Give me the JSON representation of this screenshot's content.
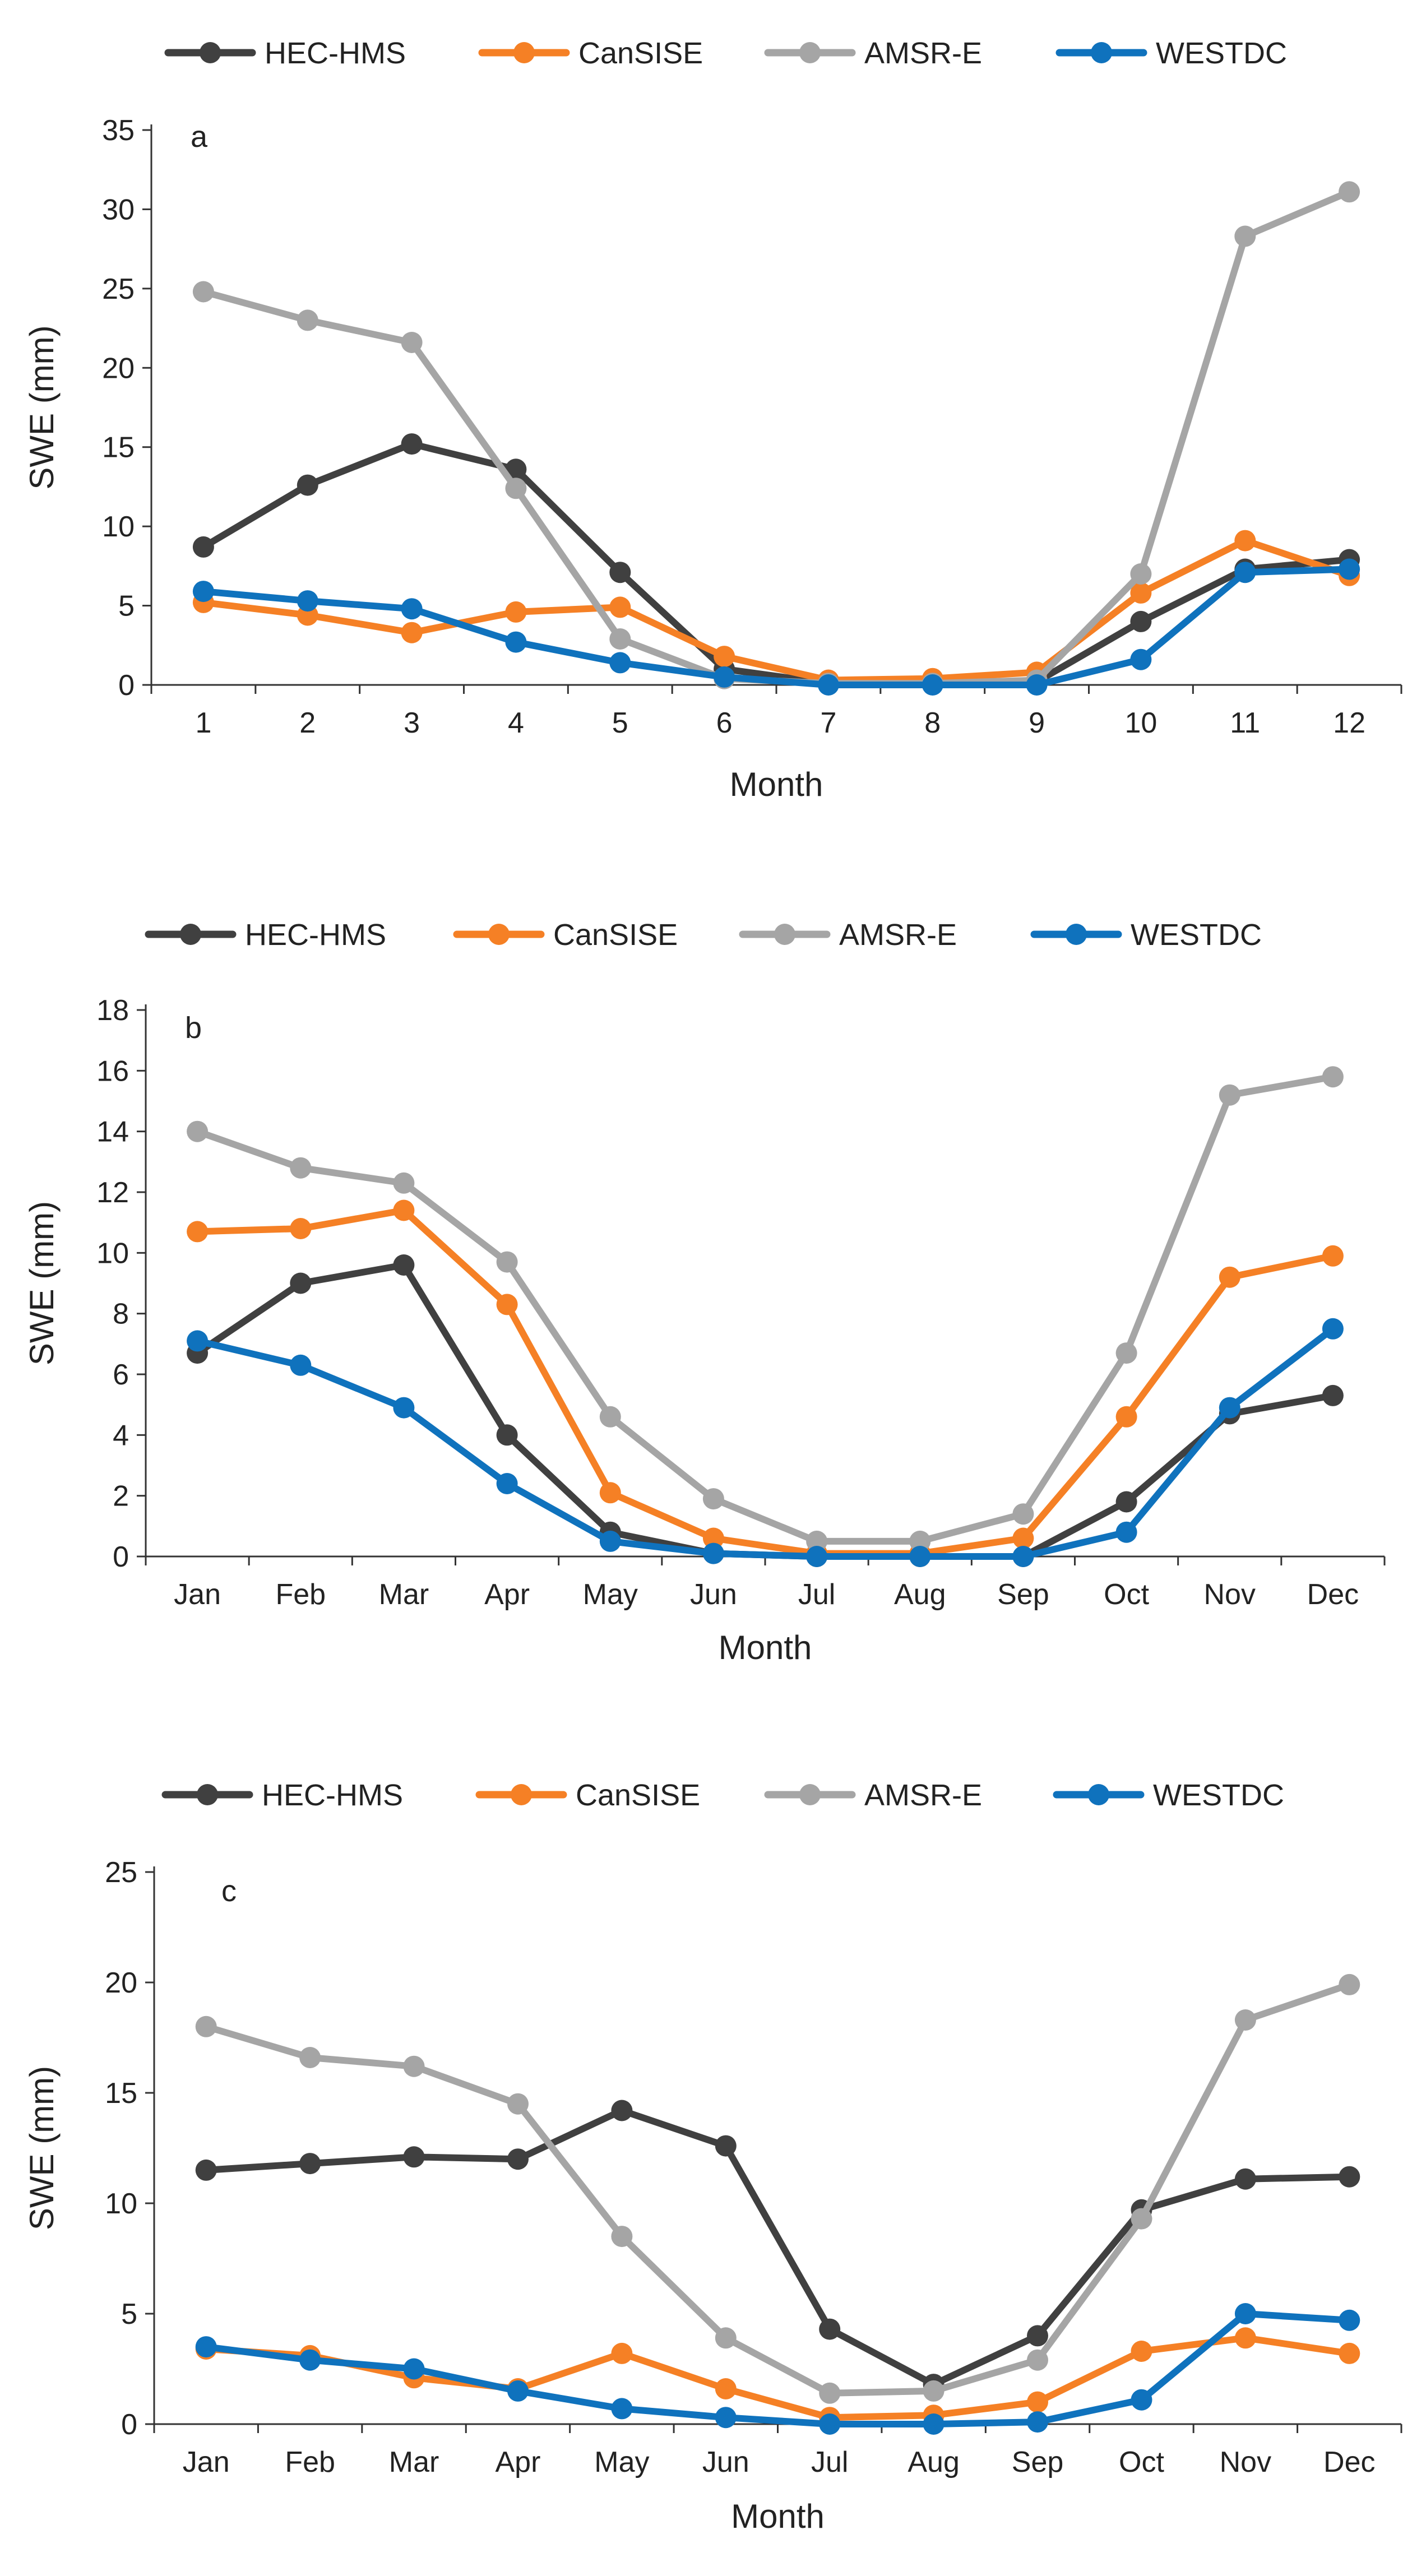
{
  "chart_data": [
    {
      "type": "line",
      "panel_label": "a",
      "categories": [
        "1",
        "2",
        "3",
        "4",
        "5",
        "6",
        "7",
        "8",
        "9",
        "10",
        "11",
        "12"
      ],
      "xlabel": "Month",
      "ylabel": "SWE (mm)",
      "ylim": [
        0,
        35
      ],
      "yticks": [
        "0",
        "5",
        "10",
        "15",
        "20",
        "25",
        "30",
        "35"
      ],
      "legend_position": "top",
      "series": [
        {
          "name": "HEC-HMS",
          "color": "#404040",
          "values": [
            8.7,
            12.6,
            15.2,
            13.6,
            7.1,
            1.0,
            0.1,
            0.1,
            0.2,
            4.0,
            7.3,
            7.9
          ]
        },
        {
          "name": "CanSISE",
          "color": "#f58025",
          "values": [
            5.2,
            4.4,
            3.3,
            4.6,
            4.9,
            1.8,
            0.3,
            0.4,
            0.8,
            5.8,
            9.1,
            6.9
          ]
        },
        {
          "name": "AMSR-E",
          "color": "#a5a5a5",
          "values": [
            24.8,
            23.0,
            21.6,
            12.4,
            2.9,
            0.4,
            0.1,
            0.1,
            0.3,
            7.0,
            28.3,
            31.1
          ]
        },
        {
          "name": "WESTDC",
          "color": "#0f72bd",
          "values": [
            5.9,
            5.3,
            4.8,
            2.7,
            1.4,
            0.5,
            0.0,
            0.0,
            0.0,
            1.6,
            7.1,
            7.3
          ]
        }
      ]
    },
    {
      "type": "line",
      "panel_label": "b",
      "categories": [
        "Jan",
        "Feb",
        "Mar",
        "Apr",
        "May",
        "Jun",
        "Jul",
        "Aug",
        "Sep",
        "Oct",
        "Nov",
        "Dec"
      ],
      "xlabel": "Month",
      "ylabel": "SWE (mm)",
      "ylim": [
        0,
        18
      ],
      "yticks": [
        "0",
        "2",
        "4",
        "6",
        "8",
        "10",
        "12",
        "14",
        "16",
        "18"
      ],
      "legend_position": "top",
      "series": [
        {
          "name": "HEC-HMS",
          "color": "#404040",
          "values": [
            6.7,
            9.0,
            9.6,
            4.0,
            0.8,
            0.1,
            0.0,
            0.0,
            0.0,
            1.8,
            4.7,
            5.3
          ]
        },
        {
          "name": "CanSISE",
          "color": "#f58025",
          "values": [
            10.7,
            10.8,
            11.4,
            8.3,
            2.1,
            0.6,
            0.1,
            0.1,
            0.6,
            4.6,
            9.2,
            9.9
          ]
        },
        {
          "name": "AMSR-E",
          "color": "#a5a5a5",
          "values": [
            14.0,
            12.8,
            12.3,
            9.7,
            4.6,
            1.9,
            0.5,
            0.5,
            1.4,
            6.7,
            15.2,
            15.8
          ]
        },
        {
          "name": "WESTDC",
          "color": "#0f72bd",
          "values": [
            7.1,
            6.3,
            4.9,
            2.4,
            0.5,
            0.1,
            0.0,
            0.0,
            0.0,
            0.8,
            4.9,
            7.5
          ]
        }
      ]
    },
    {
      "type": "line",
      "panel_label": "c",
      "categories": [
        "Jan",
        "Feb",
        "Mar",
        "Apr",
        "May",
        "Jun",
        "Jul",
        "Aug",
        "Sep",
        "Oct",
        "Nov",
        "Dec"
      ],
      "xlabel": "Month",
      "ylabel": "SWE (mm)",
      "ylim": [
        0,
        25
      ],
      "yticks": [
        "0",
        "5",
        "10",
        "15",
        "20",
        "25"
      ],
      "legend_position": "top",
      "series": [
        {
          "name": "HEC-HMS",
          "color": "#404040",
          "values": [
            11.5,
            11.8,
            12.1,
            12.0,
            14.2,
            12.6,
            4.3,
            1.8,
            4.0,
            9.7,
            11.1,
            11.2
          ]
        },
        {
          "name": "CanSISE",
          "color": "#f58025",
          "values": [
            3.4,
            3.1,
            2.1,
            1.6,
            3.2,
            1.6,
            0.3,
            0.4,
            1.0,
            3.3,
            3.9,
            3.2
          ]
        },
        {
          "name": "AMSR-E",
          "color": "#a5a5a5",
          "values": [
            18.0,
            16.6,
            16.2,
            14.5,
            8.5,
            3.9,
            1.4,
            1.5,
            2.9,
            9.3,
            18.3,
            19.9
          ]
        },
        {
          "name": "WESTDC",
          "color": "#0f72bd",
          "values": [
            3.5,
            2.9,
            2.5,
            1.5,
            0.7,
            0.3,
            0.0,
            0.0,
            0.1,
            1.1,
            5.0,
            4.7
          ]
        }
      ]
    }
  ]
}
